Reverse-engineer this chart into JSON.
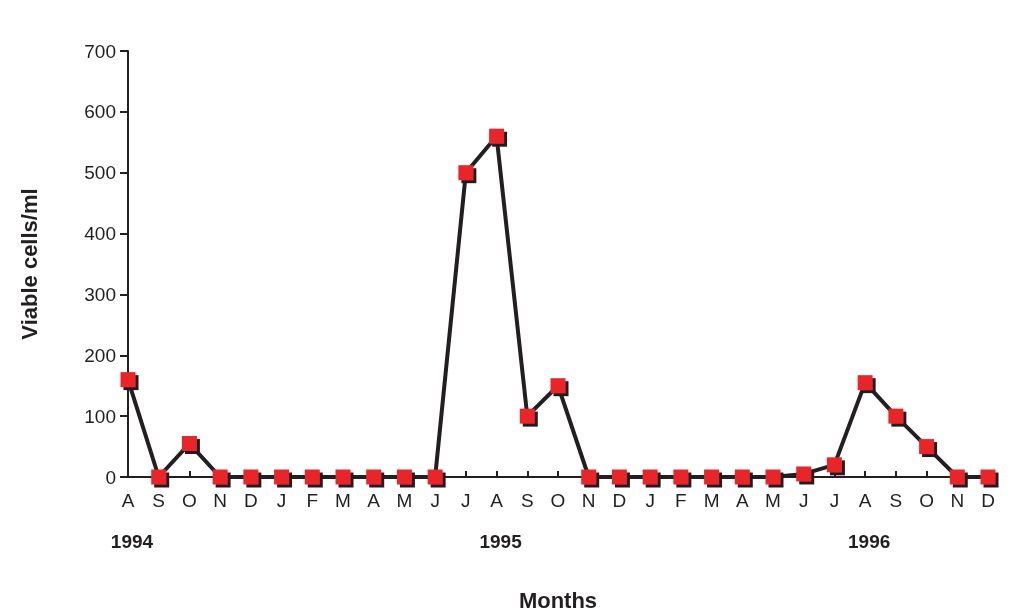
{
  "chart_data": {
    "type": "line",
    "xlabel": "Months",
    "ylabel": "Viable cells/ml",
    "categories": [
      "A",
      "S",
      "O",
      "N",
      "D",
      "J",
      "F",
      "M",
      "A",
      "M",
      "J",
      "J",
      "A",
      "S",
      "O",
      "N",
      "D",
      "J",
      "F",
      "M",
      "A",
      "M",
      "J",
      "J",
      "A",
      "S",
      "O",
      "N",
      "D"
    ],
    "series": [
      {
        "color": "#231f20",
        "values": [
          160,
          0,
          55,
          0,
          0,
          0,
          0,
          0,
          0,
          0,
          0,
          500,
          560,
          100,
          150,
          0,
          0,
          0,
          0,
          0,
          0,
          0,
          5,
          20,
          155,
          100,
          50,
          0,
          0
        ]
      }
    ],
    "ylim": [
      0,
      700
    ],
    "yticks": [
      0,
      100,
      200,
      300,
      400,
      500,
      600,
      700
    ],
    "annotations": [
      "1994",
      "1995",
      "1996"
    ],
    "marker": "square",
    "grid": false
  }
}
